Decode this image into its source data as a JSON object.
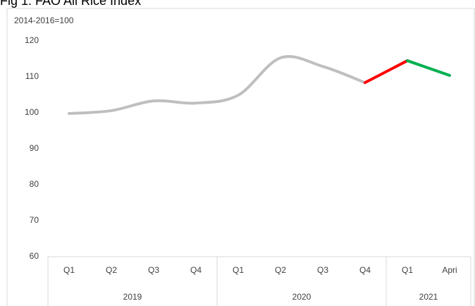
{
  "chart_data": {
    "type": "line",
    "title": "Fig 1: FAO All Rice Index",
    "y_label": "2014-2016=100",
    "categories": [
      "Q1",
      "Q2",
      "Q3",
      "Q4",
      "Q1",
      "Q2",
      "Q3",
      "Q4",
      "Q1",
      "Apri"
    ],
    "group_labels": [
      "2019",
      null,
      null,
      null,
      "2020",
      null,
      null,
      null,
      "2021",
      null
    ],
    "series": [
      {
        "color": "#bfbfbf",
        "values": [
          99.8,
          100.6,
          103.3,
          102.7,
          104.9,
          115.3,
          112.9,
          108.4,
          null,
          null
        ]
      },
      {
        "color": "#ff0000",
        "values": [
          null,
          null,
          null,
          null,
          null,
          null,
          null,
          108.4,
          114.5,
          null
        ]
      },
      {
        "color": "#00b050",
        "values": [
          null,
          null,
          null,
          null,
          null,
          null,
          null,
          null,
          114.5,
          110.4
        ]
      }
    ],
    "ylim": [
      60,
      120
    ],
    "yticks": [
      60,
      70,
      80,
      90,
      100,
      110,
      120
    ],
    "grid": false,
    "legend": false
  }
}
